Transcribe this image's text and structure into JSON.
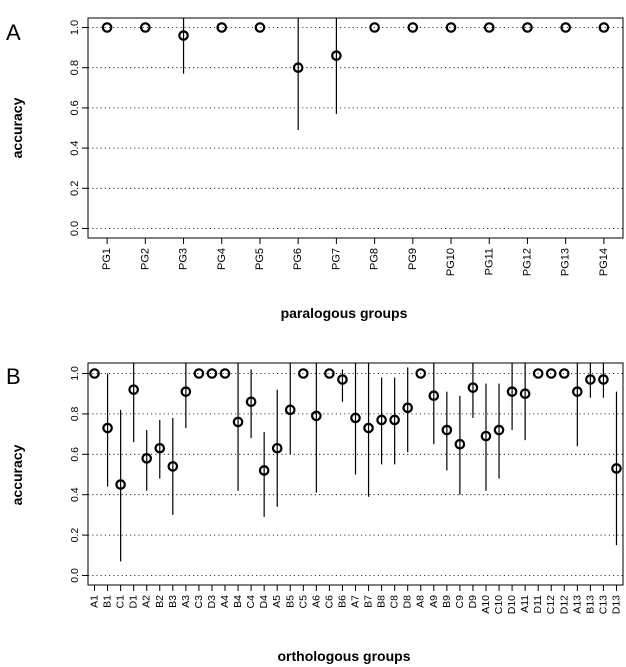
{
  "chart_data": [
    {
      "type": "scatter",
      "panel_label": "A",
      "xlabel": "paralogous groups",
      "ylabel": "accuracy",
      "ylim": [
        0,
        1
      ],
      "yticks": [
        "0.0",
        "0.2",
        "0.4",
        "0.6",
        "0.8",
        "1.0"
      ],
      "grid": true,
      "categories": [
        "PG1",
        "PG2",
        "PG3",
        "PG4",
        "PG5",
        "PG6",
        "PG7",
        "PG8",
        "PG9",
        "PG10",
        "PG11",
        "PG12",
        "PG13",
        "PG14"
      ],
      "values": [
        1.0,
        1.0,
        0.96,
        1.0,
        1.0,
        0.8,
        0.86,
        1.0,
        1.0,
        1.0,
        1.0,
        1.0,
        1.0,
        1.0
      ],
      "lower": [
        1.0,
        1.0,
        0.77,
        1.0,
        1.0,
        0.49,
        0.57,
        1.0,
        1.0,
        1.0,
        1.0,
        1.0,
        1.0,
        1.0
      ],
      "upper": [
        1.0,
        1.0,
        1.05,
        1.0,
        1.0,
        1.05,
        1.05,
        1.0,
        1.0,
        1.0,
        1.0,
        1.0,
        1.0,
        1.0
      ]
    },
    {
      "type": "scatter",
      "panel_label": "B",
      "xlabel": "orthologous groups",
      "ylabel": "accuracy",
      "ylim": [
        0,
        1
      ],
      "yticks": [
        "0.0",
        "0.2",
        "0.4",
        "0.6",
        "0.8",
        "1.0"
      ],
      "grid": true,
      "categories": [
        "A1",
        "B1",
        "C1",
        "D1",
        "A2",
        "B2",
        "B3",
        "A3",
        "C3",
        "D3",
        "A4",
        "B4",
        "C4",
        "D4",
        "A5",
        "B5",
        "C5",
        "A6",
        "C6",
        "B6",
        "A7",
        "B7",
        "B8",
        "C8",
        "D8",
        "A8",
        "A9",
        "B9",
        "C9",
        "D9",
        "A10",
        "C10",
        "D10",
        "A11",
        "D11",
        "C12",
        "D12",
        "A13",
        "B13",
        "C13",
        "D13"
      ],
      "values": [
        1.0,
        0.73,
        0.45,
        0.92,
        0.58,
        0.63,
        0.54,
        0.91,
        1.0,
        1.0,
        1.0,
        0.76,
        0.86,
        0.52,
        0.63,
        0.82,
        1.0,
        0.79,
        1.0,
        0.97,
        0.78,
        0.73,
        0.77,
        0.77,
        0.83,
        1.0,
        0.89,
        0.72,
        0.65,
        0.93,
        0.69,
        0.72,
        0.91,
        0.9,
        1.0,
        1.0,
        1.0,
        0.91,
        0.97,
        0.97,
        0.53
      ],
      "lower": [
        1.0,
        0.44,
        0.07,
        0.66,
        0.42,
        0.48,
        0.3,
        0.73,
        1.0,
        1.0,
        1.0,
        0.42,
        0.68,
        0.29,
        0.34,
        0.6,
        1.0,
        0.41,
        1.0,
        0.86,
        0.5,
        0.39,
        0.55,
        0.55,
        0.61,
        1.0,
        0.65,
        0.52,
        0.4,
        0.78,
        0.42,
        0.48,
        0.72,
        0.67,
        1.0,
        1.0,
        1.0,
        0.64,
        0.88,
        0.88,
        0.15
      ],
      "upper": [
        1.0,
        1.0,
        0.82,
        1.05,
        0.72,
        0.77,
        0.78,
        1.05,
        1.0,
        1.0,
        1.0,
        1.05,
        1.02,
        0.71,
        0.92,
        1.05,
        1.0,
        1.05,
        1.0,
        1.02,
        1.05,
        1.05,
        0.98,
        0.98,
        1.03,
        1.0,
        1.05,
        0.91,
        0.89,
        1.05,
        0.95,
        0.95,
        1.05,
        1.05,
        1.0,
        1.0,
        1.0,
        1.05,
        1.05,
        1.05,
        0.91
      ]
    }
  ]
}
